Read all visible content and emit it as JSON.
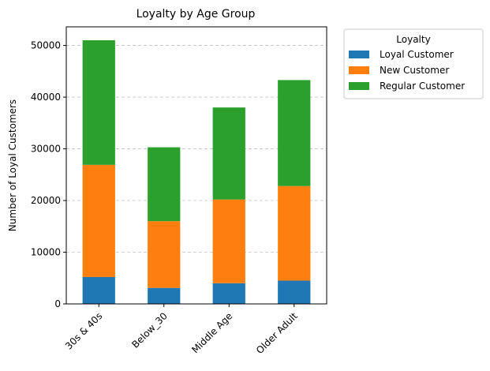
{
  "chart_data": {
    "type": "bar",
    "stacked": true,
    "title": "Loyalty by Age Group",
    "xlabel": "",
    "ylabel": "Number of Loyal Customers",
    "categories": [
      "30s & 40s",
      "Below_30",
      "Middle Age",
      "Older Adult"
    ],
    "series": [
      {
        "name": "Loyal Customer",
        "color": "#1f77b4",
        "values": [
          5200,
          3100,
          4000,
          4500
        ]
      },
      {
        "name": "New Customer",
        "color": "#ff7f0e",
        "values": [
          21700,
          12900,
          16200,
          18300
        ]
      },
      {
        "name": "Regular Customer",
        "color": "#2ca02c",
        "values": [
          24100,
          14300,
          17800,
          20500
        ]
      }
    ],
    "ylim": [
      0,
      53600
    ],
    "yticks": [
      0,
      10000,
      20000,
      30000,
      40000,
      50000
    ],
    "grid": {
      "y": true,
      "x": false,
      "style": "dashed"
    },
    "legend": {
      "title": "Loyalty",
      "placement": "outside-top-right"
    },
    "xtick_rotation": -45
  }
}
